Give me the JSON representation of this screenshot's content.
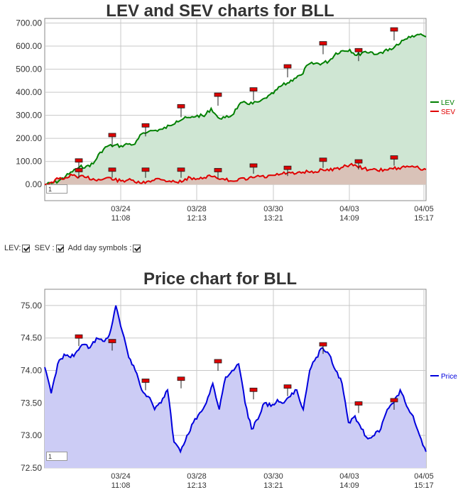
{
  "colors": {
    "lev": "#008000",
    "sev": "#e00000",
    "price": "#0000dd",
    "lev_fill": "#cfe6d3",
    "sev_fill": "#d9c2b8",
    "price_fill": "#ccccf5",
    "grid": "#c8c8c8",
    "marker": "#dd0000"
  },
  "controls": {
    "lev_label": "LEV:",
    "sev_label": "SEV :",
    "day_symbols_label": "Add day symbols :"
  },
  "chart_data": [
    {
      "type": "line",
      "title": "LEV and SEV charts for BLL",
      "ylim": [
        -70,
        720
      ],
      "y_ticks": [
        "700.00",
        "600.00",
        "500.00",
        "400.00",
        "300.00",
        "200.00",
        "100.00",
        "0.00"
      ],
      "x_ticks": [
        [
          "03/24",
          "11:08"
        ],
        [
          "03/28",
          "12:13"
        ],
        [
          "03/30",
          "13:21"
        ],
        [
          "04/03",
          "14:09"
        ],
        [
          "04/05",
          "15:17"
        ]
      ],
      "legend": "right",
      "input_value": "1",
      "series": [
        {
          "name": "LEV",
          "values": [
            0,
            5,
            15,
            35,
            55,
            75,
            80,
            90,
            140,
            165,
            170,
            168,
            175,
            175,
            220,
            230,
            235,
            240,
            255,
            275,
            285,
            290,
            300,
            295,
            330,
            290,
            290,
            300,
            345,
            355,
            350,
            360,
            375,
            395,
            425,
            440,
            460,
            475,
            520,
            525,
            525,
            535,
            570,
            580,
            585,
            560,
            575,
            575,
            565,
            580,
            585,
            605,
            630,
            645,
            650,
            640
          ]
        },
        {
          "name": "SEV",
          "values": [
            0,
            10,
            25,
            30,
            40,
            35,
            30,
            25,
            20,
            30,
            20,
            15,
            20,
            10,
            5,
            15,
            25,
            20,
            15,
            10,
            15,
            30,
            25,
            30,
            35,
            25,
            20,
            15,
            25,
            20,
            30,
            35,
            30,
            40,
            45,
            50,
            45,
            50,
            55,
            55,
            65,
            60,
            70,
            75,
            85,
            80,
            70,
            65,
            60,
            65,
            70,
            72,
            75,
            80,
            70,
            65
          ]
        }
      ],
      "day_markers_lev": [
        112,
        222,
        264,
        347,
        397,
        420,
        520,
        620,
        590,
        680
      ],
      "day_markers_sev": [
        70,
        72,
        72,
        72,
        70,
        90,
        80,
        115,
        108,
        125
      ]
    },
    {
      "type": "area",
      "title": "Price chart for BLL",
      "ylim": [
        72.5,
        75.25
      ],
      "y_ticks": [
        "75.00",
        "74.50",
        "74.00",
        "73.50",
        "73.00",
        "72.50"
      ],
      "x_ticks": [
        [
          "03/24",
          "11:08"
        ],
        [
          "03/28",
          "12:13"
        ],
        [
          "03/30",
          "13:21"
        ],
        [
          "04/03",
          "14:09"
        ],
        [
          "04/05",
          "15:17"
        ]
      ],
      "legend": "right",
      "input_value": "1",
      "series": [
        {
          "name": "Price",
          "values": [
            74.05,
            73.65,
            74.1,
            74.25,
            74.2,
            74.3,
            74.4,
            74.35,
            74.5,
            74.45,
            74.55,
            75.0,
            74.6,
            74.2,
            74.0,
            73.7,
            73.6,
            73.4,
            73.5,
            73.7,
            72.9,
            72.75,
            73.0,
            73.2,
            73.35,
            73.5,
            73.8,
            73.4,
            73.9,
            74.0,
            74.1,
            73.5,
            73.1,
            73.25,
            73.5,
            73.45,
            73.55,
            73.5,
            73.6,
            73.7,
            73.4,
            74.0,
            74.2,
            74.35,
            74.25,
            74.0,
            73.8,
            73.2,
            73.3,
            73.1,
            72.95,
            73.0,
            73.1,
            73.4,
            73.5,
            73.7,
            73.45,
            73.3,
            73.0,
            72.75
          ]
        }
      ],
      "day_markers": [
        74.55,
        74.48,
        73.87,
        73.9,
        74.17,
        73.73,
        73.78,
        74.43,
        73.52,
        73.57
      ]
    }
  ]
}
